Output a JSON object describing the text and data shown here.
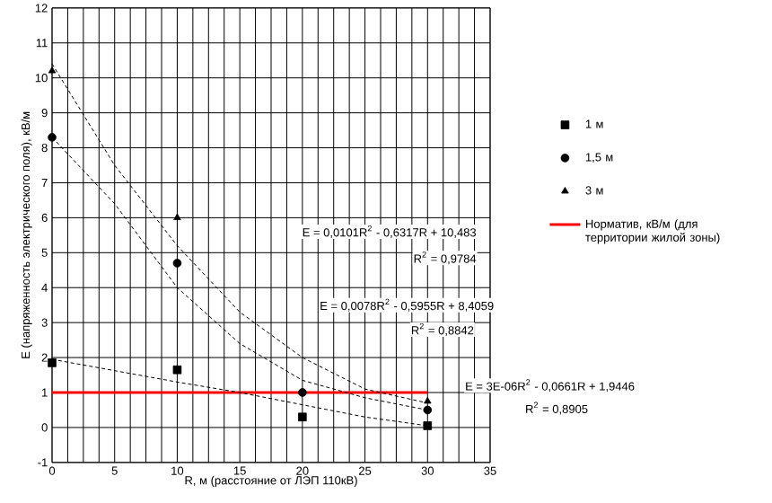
{
  "chart_data": {
    "type": "scatter",
    "xlabel": "R, м (расстояние от ЛЭП 110кВ)",
    "ylabel": "E (напряженность электрического поля), кВ/м",
    "xlim": [
      0,
      35
    ],
    "xticks": [
      0,
      5,
      10,
      15,
      20,
      25,
      30,
      35
    ],
    "ylim": [
      -1,
      12
    ],
    "yticks": [
      -1,
      0,
      1,
      2,
      3,
      4,
      5,
      6,
      7,
      8,
      9,
      10,
      11,
      12
    ],
    "grid": true,
    "legend": "right",
    "series": [
      {
        "name": "1 м",
        "marker": "square",
        "color": "#000000",
        "x": [
          0,
          10,
          20,
          30
        ],
        "values": [
          1.85,
          1.65,
          0.3,
          0.05
        ]
      },
      {
        "name": "1,5 м",
        "marker": "circle",
        "color": "#000000",
        "x": [
          0,
          10,
          20,
          30
        ],
        "values": [
          8.3,
          4.7,
          1.0,
          0.5
        ]
      },
      {
        "name": "3 м",
        "marker": "triangle",
        "color": "#000000",
        "x": [
          0,
          10,
          20,
          30
        ],
        "values": [
          10.2,
          6.0,
          null,
          0.75
        ]
      },
      {
        "name": "Норматив, кВ/м (для территории жилой зоны)",
        "type": "line",
        "marker": "none",
        "color": "#ff0000",
        "x": [
          0,
          30
        ],
        "values": [
          1,
          1
        ]
      },
      {
        "type": "line",
        "line_style": "dashed",
        "marker": "none",
        "color": "#000000",
        "x": [
          0,
          5,
          10,
          15,
          20,
          25,
          30
        ],
        "values": [
          10.4,
          7.5,
          5.2,
          3.3,
          2.0,
          1.1,
          0.7
        ]
      },
      {
        "type": "line",
        "line_style": "dashed",
        "marker": "none",
        "color": "#000000",
        "x": [
          0,
          5,
          10,
          15,
          20,
          25,
          30
        ],
        "values": [
          8.3,
          6.4,
          4.0,
          2.4,
          1.35,
          0.85,
          0.5
        ]
      },
      {
        "type": "line",
        "line_style": "dashed",
        "marker": "none",
        "color": "#000000",
        "x": [
          0,
          10,
          15,
          20,
          25,
          30
        ],
        "values": [
          1.95,
          1.3,
          1.0,
          0.65,
          0.3,
          0.05
        ]
      }
    ],
    "annotations": [
      "E = 0,0101R$^{2}$ - 0,6317R + 10,483",
      "R$^{2}$ = 0,9784",
      "E = 0,0078R$^{2}$ - 0,5955R + 8,4059",
      "R$^{2}$ = 0,8842",
      "E = 3E-06R$^{2}$ - 0,0661R + 1,9446",
      "R$^{2}$ = 0,8905"
    ]
  }
}
